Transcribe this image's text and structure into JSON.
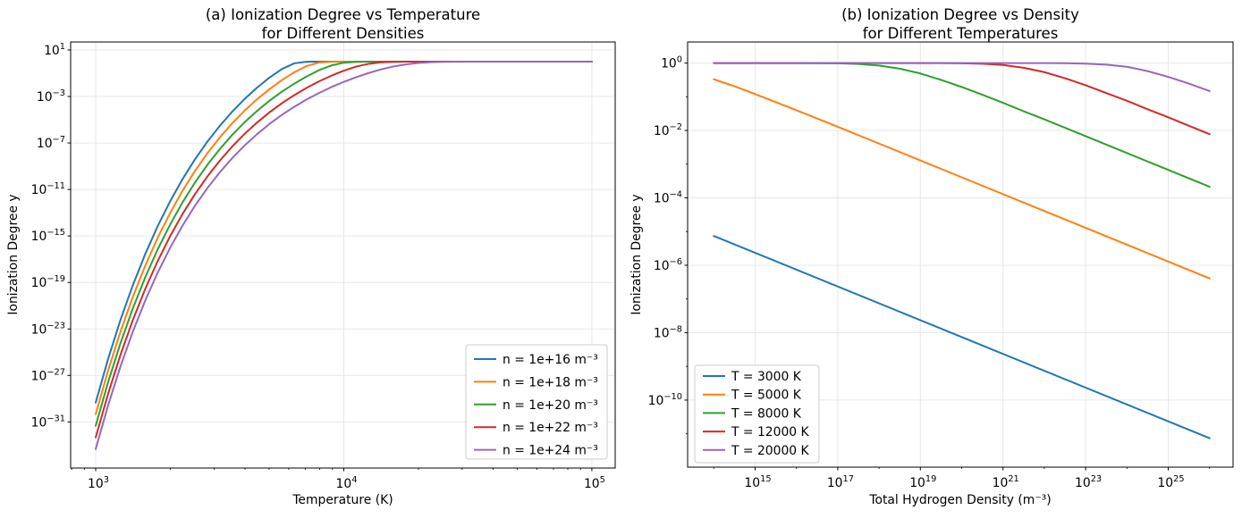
{
  "figure": {
    "background": "#ffffff",
    "grid_color": "#e7e7e7",
    "spine_color": "#000000"
  },
  "chart_data": [
    {
      "type": "line",
      "title": "(a) Ionization Degree vs Temperature\nfor Different Densities",
      "xlabel": "Temperature (K)",
      "ylabel": "Ionization Degree y",
      "x_scale": "log",
      "y_scale": "log",
      "x_range_log10": [
        2.899,
        5.094
      ],
      "y_range_log10": [
        -34.97,
        1.69
      ],
      "x_tick_exponents": [
        3,
        4,
        5
      ],
      "y_tick_exponents": [
        1,
        -3,
        -7,
        -11,
        -15,
        -19,
        -23,
        -27,
        -31
      ],
      "grid": true,
      "legend": {
        "location": "lower right"
      },
      "series": [
        {
          "label": "n = 1e+16 m⁻³",
          "color": "#1f77b4",
          "log10_points": [
            [
              3.0,
              -29.34
            ],
            [
              3.05,
              -25.58
            ],
            [
              3.1,
              -22.22
            ],
            [
              3.15,
              -19.22
            ],
            [
              3.2,
              -16.54
            ],
            [
              3.25,
              -14.15
            ],
            [
              3.3,
              -12.02
            ],
            [
              3.35,
              -10.11
            ],
            [
              3.4,
              -8.41
            ],
            [
              3.45,
              -6.89
            ],
            [
              3.5,
              -5.53
            ],
            [
              3.55,
              -4.31
            ],
            [
              3.6,
              -3.22
            ],
            [
              3.65,
              -2.25
            ],
            [
              3.7,
              -1.38
            ],
            [
              3.75,
              -0.65
            ],
            [
              3.8,
              -0.15
            ],
            [
              3.85,
              -0.014
            ],
            [
              3.9,
              -0.001
            ],
            [
              4.0,
              0
            ],
            [
              5.0,
              0
            ]
          ]
        },
        {
          "label": "n = 1e+18 m⁻³",
          "color": "#ff7f0e",
          "log10_points": [
            [
              3.0,
              -30.34
            ],
            [
              3.05,
              -26.58
            ],
            [
              3.1,
              -23.22
            ],
            [
              3.15,
              -20.22
            ],
            [
              3.2,
              -17.54
            ],
            [
              3.25,
              -15.15
            ],
            [
              3.3,
              -13.02
            ],
            [
              3.35,
              -11.11
            ],
            [
              3.4,
              -9.41
            ],
            [
              3.45,
              -7.89
            ],
            [
              3.5,
              -6.53
            ],
            [
              3.55,
              -5.31
            ],
            [
              3.6,
              -4.22
            ],
            [
              3.65,
              -3.25
            ],
            [
              3.7,
              -2.38
            ],
            [
              3.75,
              -1.6
            ],
            [
              3.8,
              -0.92
            ],
            [
              3.85,
              -0.38
            ],
            [
              3.9,
              -0.082
            ],
            [
              3.95,
              -0.01
            ],
            [
              4.0,
              -0.001
            ],
            [
              4.1,
              0
            ],
            [
              5.0,
              0
            ]
          ]
        },
        {
          "label": "n = 1e+20 m⁻³",
          "color": "#2ca02c",
          "log10_points": [
            [
              3.0,
              -31.34
            ],
            [
              3.05,
              -27.58
            ],
            [
              3.1,
              -24.22
            ],
            [
              3.15,
              -21.22
            ],
            [
              3.2,
              -18.54
            ],
            [
              3.25,
              -16.15
            ],
            [
              3.3,
              -14.02
            ],
            [
              3.35,
              -12.11
            ],
            [
              3.4,
              -10.41
            ],
            [
              3.45,
              -8.89
            ],
            [
              3.5,
              -7.53
            ],
            [
              3.55,
              -6.31
            ],
            [
              3.6,
              -5.22
            ],
            [
              3.65,
              -4.25
            ],
            [
              3.7,
              -3.37
            ],
            [
              3.75,
              -2.59
            ],
            [
              3.8,
              -1.9
            ],
            [
              3.85,
              -1.28
            ],
            [
              3.9,
              -0.74
            ],
            [
              3.95,
              -0.33
            ],
            [
              4.0,
              -0.094
            ],
            [
              4.05,
              -0.018
            ],
            [
              4.1,
              -0.004
            ],
            [
              4.2,
              0
            ],
            [
              5.0,
              0
            ]
          ]
        },
        {
          "label": "n = 1e+22 m⁻³",
          "color": "#d62728",
          "log10_points": [
            [
              3.0,
              -32.34
            ],
            [
              3.05,
              -28.58
            ],
            [
              3.1,
              -25.22
            ],
            [
              3.15,
              -22.22
            ],
            [
              3.2,
              -19.54
            ],
            [
              3.25,
              -17.15
            ],
            [
              3.3,
              -15.02
            ],
            [
              3.35,
              -13.11
            ],
            [
              3.4,
              -11.41
            ],
            [
              3.45,
              -9.89
            ],
            [
              3.5,
              -8.53
            ],
            [
              3.55,
              -7.31
            ],
            [
              3.6,
              -6.22
            ],
            [
              3.65,
              -5.25
            ],
            [
              3.7,
              -4.37
            ],
            [
              3.75,
              -3.59
            ],
            [
              3.8,
              -2.89
            ],
            [
              3.85,
              -2.26
            ],
            [
              3.9,
              -1.7
            ],
            [
              3.95,
              -1.21
            ],
            [
              4.0,
              -0.78
            ],
            [
              4.05,
              -0.43
            ],
            [
              4.1,
              -0.19
            ],
            [
              4.15,
              -0.062
            ],
            [
              4.2,
              -0.018
            ],
            [
              4.25,
              -0.005
            ],
            [
              4.3,
              -0.002
            ],
            [
              4.4,
              0
            ],
            [
              5.0,
              0
            ]
          ]
        },
        {
          "label": "n = 1e+24 m⁻³",
          "color": "#9467bd",
          "log10_points": [
            [
              3.0,
              -33.34
            ],
            [
              3.05,
              -29.58
            ],
            [
              3.1,
              -26.22
            ],
            [
              3.15,
              -23.22
            ],
            [
              3.2,
              -20.54
            ],
            [
              3.25,
              -18.15
            ],
            [
              3.3,
              -16.02
            ],
            [
              3.35,
              -14.11
            ],
            [
              3.4,
              -12.41
            ],
            [
              3.45,
              -10.89
            ],
            [
              3.5,
              -9.53
            ],
            [
              3.55,
              -8.31
            ],
            [
              3.6,
              -7.22
            ],
            [
              3.65,
              -6.25
            ],
            [
              3.7,
              -5.37
            ],
            [
              3.75,
              -4.59
            ],
            [
              3.8,
              -3.89
            ],
            [
              3.85,
              -3.26
            ],
            [
              3.9,
              -2.7
            ],
            [
              3.95,
              -2.19
            ],
            [
              4.0,
              -1.74
            ],
            [
              4.05,
              -1.34
            ],
            [
              4.1,
              -0.98
            ],
            [
              4.15,
              -0.67
            ],
            [
              4.2,
              -0.42
            ],
            [
              4.25,
              -0.24
            ],
            [
              4.3,
              -0.12
            ],
            [
              4.35,
              -0.052
            ],
            [
              4.4,
              -0.023
            ],
            [
              4.5,
              -0.005
            ],
            [
              4.6,
              -0.001
            ],
            [
              4.8,
              0
            ],
            [
              5.0,
              0
            ]
          ]
        }
      ]
    },
    {
      "type": "line",
      "title": "(b) Ionization Degree vs Density\nfor Different Temperatures",
      "xlabel": "Total Hydrogen Density (m⁻³)",
      "ylabel": "Ionization Degree y",
      "x_scale": "log",
      "y_scale": "log",
      "x_range_log10": [
        13.366,
        26.569
      ],
      "y_range_log10": [
        -11.99,
        0.625
      ],
      "x_tick_exponents": [
        15,
        17,
        19,
        21,
        23,
        25
      ],
      "y_tick_exponents": [
        0,
        -2,
        -4,
        -6,
        -8,
        -10
      ],
      "grid": true,
      "legend": {
        "location": "lower left"
      },
      "series": [
        {
          "label": "T = 3000 K",
          "color": "#1f77b4",
          "log10_points": [
            [
              14,
              -5.13
            ],
            [
              20,
              -8.13
            ],
            [
              26,
              -11.13
            ]
          ]
        },
        {
          "label": "T = 5000 K",
          "color": "#ff7f0e",
          "log10_points": [
            [
              14,
              -0.48
            ],
            [
              14.5,
              -0.69
            ],
            [
              15,
              -0.92
            ],
            [
              15.5,
              -1.16
            ],
            [
              16,
              -1.4
            ],
            [
              17,
              -1.89
            ],
            [
              18,
              -2.39
            ],
            [
              20,
              -3.39
            ],
            [
              22,
              -4.39
            ],
            [
              24,
              -5.39
            ],
            [
              26,
              -6.39
            ]
          ]
        },
        {
          "label": "T = 8000 K",
          "color": "#2ca02c",
          "log10_points": [
            [
              14,
              0
            ],
            [
              16,
              -0.001
            ],
            [
              16.5,
              -0.003
            ],
            [
              17,
              -0.009
            ],
            [
              17.5,
              -0.027
            ],
            [
              18,
              -0.073
            ],
            [
              18.5,
              -0.166
            ],
            [
              19,
              -0.31
            ],
            [
              19.5,
              -0.5
            ],
            [
              20,
              -0.71
            ],
            [
              20.5,
              -0.94
            ],
            [
              21,
              -1.18
            ],
            [
              21.5,
              -1.43
            ],
            [
              22,
              -1.67
            ],
            [
              23,
              -2.17
            ],
            [
              24,
              -2.67
            ],
            [
              25,
              -3.17
            ],
            [
              26,
              -3.67
            ]
          ]
        },
        {
          "label": "T = 12000 K",
          "color": "#d62728",
          "log10_points": [
            [
              14,
              0
            ],
            [
              18,
              0
            ],
            [
              19,
              -0.001
            ],
            [
              19.5,
              -0.002
            ],
            [
              20,
              -0.008
            ],
            [
              20.5,
              -0.021
            ],
            [
              21,
              -0.058
            ],
            [
              21.5,
              -0.14
            ],
            [
              22,
              -0.27
            ],
            [
              22.5,
              -0.45
            ],
            [
              23,
              -0.66
            ],
            [
              23.5,
              -0.89
            ],
            [
              24,
              -1.12
            ],
            [
              24.5,
              -1.37
            ],
            [
              25,
              -1.61
            ],
            [
              25.5,
              -1.86
            ],
            [
              26,
              -2.11
            ]
          ]
        },
        {
          "label": "T = 20000 K",
          "color": "#9467bd",
          "log10_points": [
            [
              14,
              0
            ],
            [
              21,
              0
            ],
            [
              22,
              -0.002
            ],
            [
              22.5,
              -0.005
            ],
            [
              23,
              -0.016
            ],
            [
              23.5,
              -0.046
            ],
            [
              24,
              -0.11
            ],
            [
              24.5,
              -0.24
            ],
            [
              25,
              -0.41
            ],
            [
              25.5,
              -0.61
            ],
            [
              26,
              -0.83
            ]
          ]
        }
      ]
    }
  ]
}
